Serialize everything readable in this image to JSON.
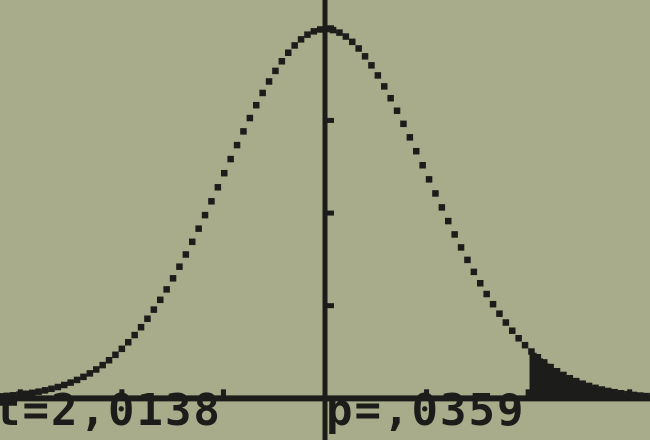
{
  "chart_data": {
    "type": "area",
    "distribution": "Student t",
    "x_range": [
      -3.2,
      3.2
    ],
    "y_range": [
      -0.045,
      0.43
    ],
    "y_ticks": [
      0.1,
      0.2,
      0.3,
      0.4
    ],
    "x_ticks": [
      -3,
      -2,
      -1,
      1,
      2,
      3
    ],
    "shaded_region": {
      "from": 2.0138,
      "to": 3.2,
      "tail": "right"
    },
    "t_statistic": "t=2,0138",
    "p_value": "p=,0359"
  },
  "colors": {
    "lcd_background": "#a8ac8a",
    "pixel_ink": "#1c1c1a"
  }
}
